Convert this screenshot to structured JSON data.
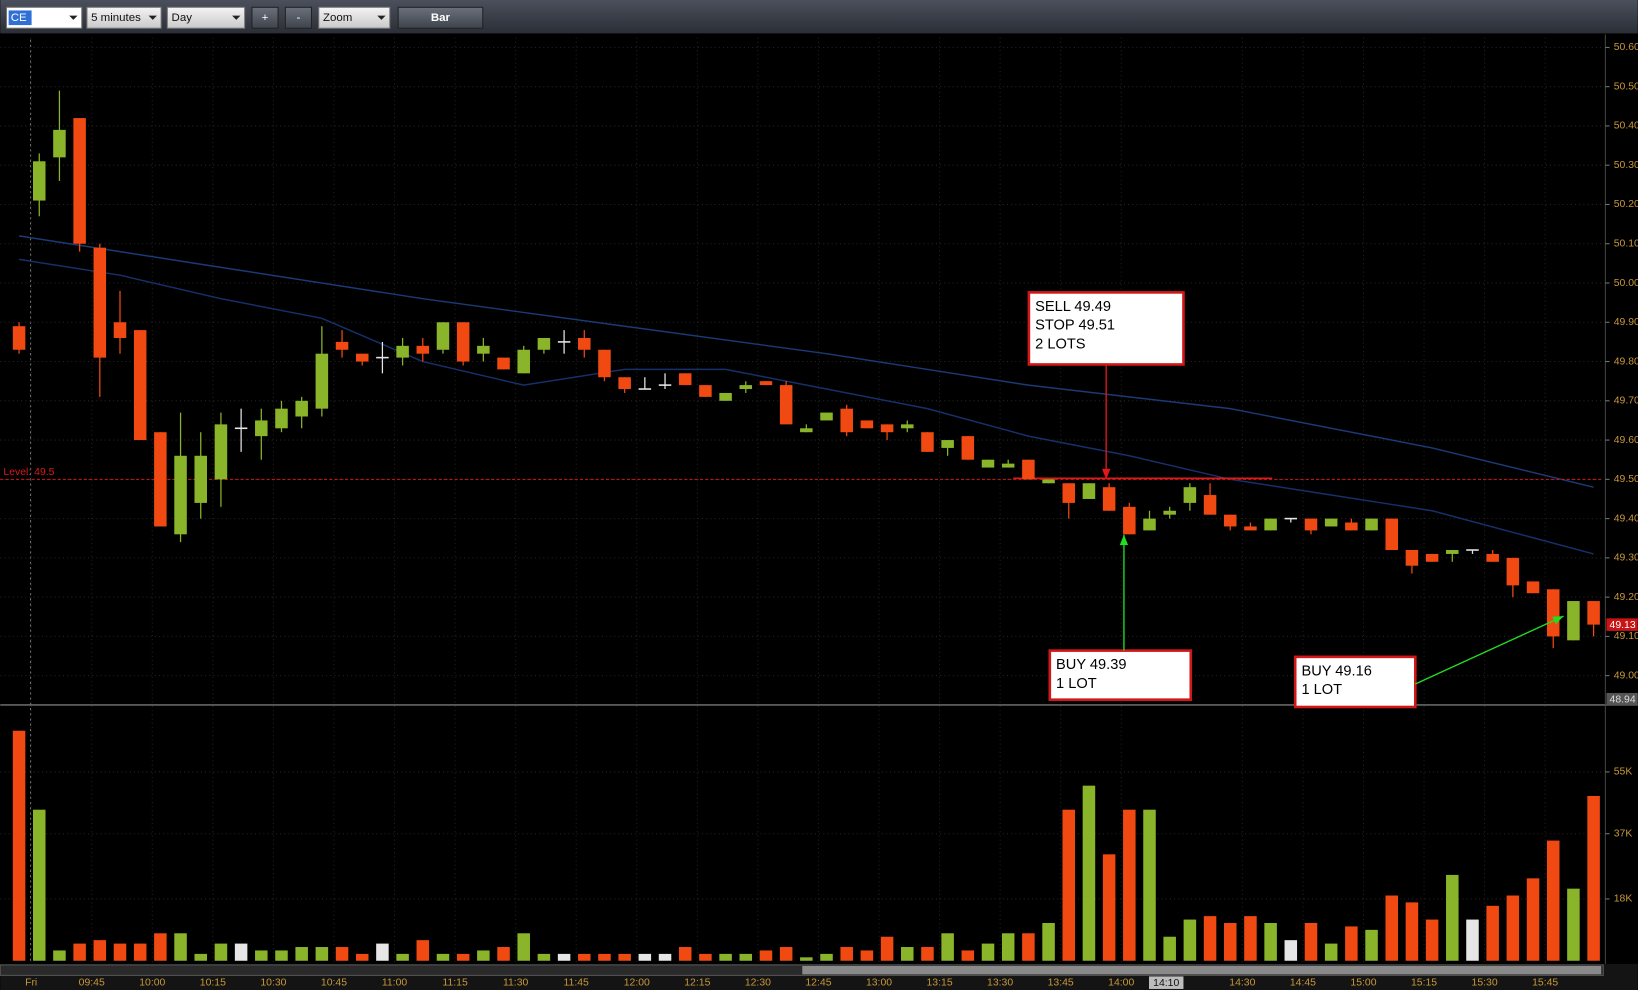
{
  "toolbar": {
    "symbol": "CE",
    "interval": "5 minutes",
    "range": "Day",
    "zoom_in": "+",
    "zoom_out": "-",
    "zoom": "Zoom",
    "style": "Bar"
  },
  "chart_data": {
    "type": "candlestick",
    "categories": [
      null,
      "Fri",
      null,
      null,
      "09:45",
      null,
      null,
      "10:00",
      null,
      null,
      "10:15",
      null,
      null,
      "10:30",
      null,
      null,
      "10:45",
      null,
      null,
      "11:00",
      null,
      null,
      "11:15",
      null,
      null,
      "11:30",
      null,
      null,
      "11:45",
      null,
      null,
      "12:00",
      null,
      null,
      "12:15",
      null,
      null,
      "12:30",
      null,
      null,
      "12:45",
      null,
      null,
      "13:00",
      null,
      null,
      "13:15",
      null,
      null,
      "13:30",
      null,
      null,
      "13:45",
      null,
      null,
      "14:00",
      null,
      null,
      null,
      null,
      null,
      "14:30",
      null,
      null,
      "14:45",
      null,
      null,
      "15:00",
      null,
      null,
      "15:15",
      null,
      null,
      "15:30",
      null,
      null,
      "15:45",
      null,
      null
    ],
    "open": [
      49.89,
      50.21,
      50.32,
      50.42,
      50.09,
      49.9,
      49.88,
      49.62,
      49.36,
      49.44,
      49.5,
      49.63,
      49.61,
      49.63,
      49.66,
      49.68,
      49.85,
      49.82,
      49.81,
      49.81,
      49.84,
      49.83,
      49.9,
      49.82,
      49.81,
      49.77,
      49.83,
      49.85,
      49.86,
      49.83,
      49.76,
      49.73,
      49.74,
      49.77,
      49.74,
      49.7,
      49.73,
      49.75,
      49.74,
      49.62,
      49.65,
      49.68,
      49.65,
      49.64,
      49.63,
      49.62,
      49.58,
      49.61,
      49.53,
      49.53,
      49.55,
      49.49,
      49.49,
      49.45,
      49.48,
      49.43,
      49.37,
      49.41,
      49.44,
      49.46,
      49.41,
      49.38,
      49.37,
      49.4,
      49.4,
      49.38,
      49.39,
      49.37,
      49.4,
      49.32,
      49.31,
      49.31,
      49.32,
      49.31,
      49.3,
      49.24,
      49.22,
      49.09,
      49.19
    ],
    "high": [
      49.9,
      50.33,
      50.49,
      50.42,
      50.1,
      49.98,
      49.88,
      49.62,
      49.67,
      49.62,
      49.67,
      49.68,
      49.68,
      49.7,
      49.71,
      49.89,
      49.88,
      49.82,
      49.85,
      49.86,
      49.86,
      49.9,
      49.9,
      49.86,
      49.81,
      49.84,
      49.86,
      49.88,
      49.88,
      49.83,
      49.76,
      49.76,
      49.77,
      49.77,
      49.74,
      49.72,
      49.75,
      49.75,
      49.75,
      49.64,
      49.67,
      49.69,
      49.65,
      49.64,
      49.65,
      49.62,
      49.6,
      49.61,
      49.55,
      49.55,
      49.55,
      49.5,
      49.49,
      49.49,
      49.49,
      49.44,
      49.42,
      49.43,
      49.49,
      49.49,
      49.41,
      49.39,
      49.4,
      49.4,
      49.4,
      49.4,
      49.4,
      49.4,
      49.4,
      49.32,
      49.31,
      49.32,
      49.32,
      49.32,
      49.3,
      49.24,
      49.22,
      49.19,
      49.19
    ],
    "low": [
      49.82,
      50.17,
      50.26,
      50.08,
      49.71,
      49.82,
      49.6,
      49.38,
      49.34,
      49.4,
      49.43,
      49.57,
      49.55,
      49.62,
      49.63,
      49.66,
      49.81,
      49.79,
      49.77,
      49.79,
      49.8,
      49.82,
      49.79,
      49.8,
      49.78,
      49.77,
      49.82,
      49.82,
      49.81,
      49.75,
      49.72,
      49.73,
      49.73,
      49.74,
      49.71,
      49.7,
      49.72,
      49.74,
      49.64,
      49.62,
      49.65,
      49.61,
      49.63,
      49.6,
      49.62,
      49.57,
      49.56,
      49.55,
      49.53,
      49.53,
      49.5,
      49.49,
      49.4,
      49.45,
      49.42,
      49.36,
      49.37,
      49.4,
      49.42,
      49.41,
      49.37,
      49.37,
      49.37,
      49.39,
      49.36,
      49.38,
      49.37,
      49.37,
      49.32,
      49.26,
      49.29,
      49.29,
      49.31,
      49.29,
      49.2,
      49.21,
      49.07,
      49.09,
      49.1
    ],
    "close": [
      49.83,
      50.31,
      50.39,
      50.1,
      49.81,
      49.86,
      49.6,
      49.38,
      49.56,
      49.56,
      49.64,
      49.63,
      49.65,
      49.68,
      49.7,
      49.82,
      49.83,
      49.8,
      49.81,
      49.84,
      49.82,
      49.9,
      49.8,
      49.84,
      49.78,
      49.83,
      49.86,
      49.85,
      49.83,
      49.76,
      49.73,
      49.73,
      49.74,
      49.74,
      49.71,
      49.72,
      49.74,
      49.74,
      49.64,
      49.63,
      49.67,
      49.62,
      49.63,
      49.62,
      49.64,
      49.57,
      49.6,
      49.55,
      49.55,
      49.54,
      49.5,
      49.5,
      49.44,
      49.49,
      49.42,
      49.36,
      49.4,
      49.42,
      49.48,
      49.41,
      49.38,
      49.37,
      49.4,
      49.4,
      49.37,
      49.4,
      49.37,
      49.4,
      49.32,
      49.28,
      49.29,
      49.32,
      49.32,
      49.29,
      49.23,
      49.21,
      49.1,
      49.19,
      49.13
    ],
    "up_color": "#8ab52a",
    "down_color": "#f04a12",
    "doji_color": "#e6e6e6",
    "ylim": [
      48.93,
      50.63
    ],
    "yticks": [
      {
        "value": 49.0,
        "label": "49.00"
      },
      {
        "value": 49.1,
        "label": "49.10"
      },
      {
        "value": 49.2,
        "label": "49.20"
      },
      {
        "value": 49.3,
        "label": "49.30"
      },
      {
        "value": 49.4,
        "label": "49.40"
      },
      {
        "value": 49.5,
        "label": "49.50"
      },
      {
        "value": 49.6,
        "label": "49.60"
      },
      {
        "value": 49.7,
        "label": "49.70"
      },
      {
        "value": 49.8,
        "label": "49.80"
      },
      {
        "value": 49.9,
        "label": "49.90"
      },
      {
        "value": 50.0,
        "label": "50.00"
      },
      {
        "value": 50.1,
        "label": "50.10"
      },
      {
        "value": 50.2,
        "label": "50.20"
      },
      {
        "value": 50.3,
        "label": "50.30"
      },
      {
        "value": 50.4,
        "label": "50.40"
      },
      {
        "value": 50.5,
        "label": "50.50"
      },
      {
        "value": 50.6,
        "label": "50.60"
      }
    ],
    "grid": true,
    "moving_averages": [
      {
        "color": "#1c3a78",
        "x": [
          0,
          10,
          20,
          30,
          40,
          50,
          60,
          70,
          78
        ],
        "values": [
          50.12,
          50.04,
          49.96,
          49.89,
          49.82,
          49.74,
          49.68,
          49.58,
          49.48
        ]
      },
      {
        "color": "#17306a",
        "x": [
          0,
          5,
          10,
          15,
          20,
          25,
          30,
          35,
          40,
          45,
          50,
          55,
          60,
          65,
          70,
          78
        ],
        "values": [
          50.06,
          50.02,
          49.96,
          49.91,
          49.8,
          49.74,
          49.78,
          49.78,
          49.73,
          49.68,
          49.61,
          49.56,
          49.5,
          49.46,
          49.42,
          49.31
        ]
      }
    ],
    "level": {
      "value": 49.5,
      "label": "Level: 49.5"
    },
    "last_price": {
      "value": 49.13,
      "label": "49.13"
    },
    "bottom_price": {
      "value": 48.94,
      "label": "48.94"
    },
    "cursor_label": "14:10",
    "annotations": [
      {
        "lines": [
          "SELL 49.49",
          "STOP 49.51",
          "2 LOTS"
        ]
      },
      {
        "lines": [
          "BUY 49.39",
          "1 LOT"
        ]
      },
      {
        "lines": [
          "BUY 49.16",
          "1 LOT"
        ]
      }
    ],
    "volume": {
      "type": "bar",
      "values": [
        67000,
        44000,
        3000,
        5000,
        6000,
        5000,
        5000,
        8000,
        8000,
        2000,
        5000,
        5000,
        3000,
        3000,
        4000,
        4000,
        4000,
        2000,
        5000,
        2000,
        6000,
        2000,
        2000,
        3000,
        4000,
        8000,
        2000,
        2000,
        2000,
        2000,
        2000,
        2000,
        2000,
        4000,
        2000,
        2000,
        2000,
        3000,
        4000,
        1000,
        2000,
        4000,
        3000,
        7000,
        4000,
        4000,
        8000,
        3000,
        5000,
        8000,
        8000,
        11000,
        44000,
        51000,
        31000,
        44000,
        44000,
        7000,
        12000,
        13000,
        11000,
        13000,
        11000,
        6000,
        11000,
        5000,
        10000,
        9000,
        19000,
        17000,
        12000,
        25000,
        12000,
        16000,
        19000,
        24000,
        35000,
        21000,
        48000
      ],
      "ylim": [
        0,
        73000
      ],
      "yticks": [
        {
          "value": 18000,
          "label": "18K"
        },
        {
          "value": 37000,
          "label": "37K"
        },
        {
          "value": 55000,
          "label": "55K"
        }
      ]
    }
  }
}
